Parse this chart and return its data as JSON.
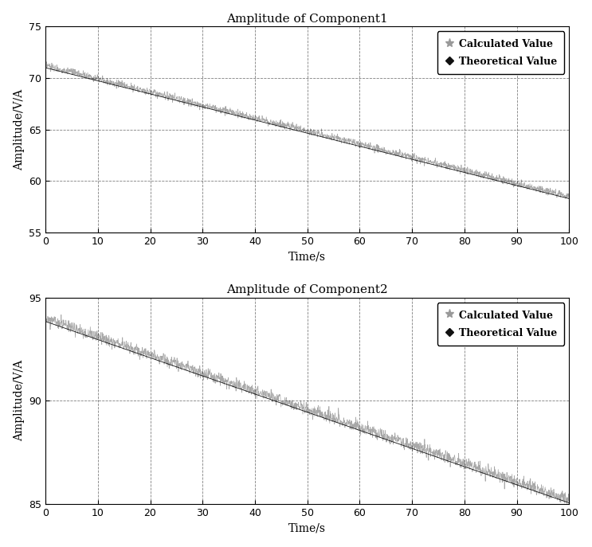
{
  "subplot1": {
    "title": "Amplitude of Component1",
    "xlabel": "Time/s",
    "ylabel": "Amplitude/V/A",
    "xlim": [
      0,
      100
    ],
    "ylim": [
      55,
      75
    ],
    "xticks": [
      0,
      10,
      20,
      30,
      40,
      50,
      60,
      70,
      80,
      90,
      100
    ],
    "yticks": [
      55,
      60,
      65,
      70,
      75
    ],
    "calc_start": 71.2,
    "calc_end": 58.5,
    "theo_start": 71.0,
    "theo_end": 58.3,
    "noise_amp": 0.18,
    "legend_calc": "Calculated Value",
    "legend_theo": "Theoretical Value"
  },
  "subplot2": {
    "title": "Amplitude of Component2",
    "xlabel": "Time/s",
    "ylabel": "Amplitude/V/A",
    "xlim": [
      0,
      100
    ],
    "ylim": [
      85,
      95
    ],
    "xticks": [
      0,
      10,
      20,
      30,
      40,
      50,
      60,
      70,
      80,
      90,
      100
    ],
    "yticks": [
      85,
      90,
      95
    ],
    "calc_start": 94.0,
    "calc_end": 85.2,
    "theo_start": 93.85,
    "theo_end": 85.05,
    "noise_amp": 0.15,
    "legend_calc": "Calculated Value",
    "legend_theo": "Theoretical Value"
  },
  "fig_bg": "#ffffff",
  "axes_bg": "#ffffff",
  "grid_color": "#000000",
  "grid_style": "--",
  "grid_alpha": 0.5,
  "calc_color": "#999999",
  "theo_color": "#111111",
  "n_points": 2000,
  "title_fontsize": 11,
  "label_fontsize": 10,
  "tick_fontsize": 9,
  "legend_fontsize": 9
}
